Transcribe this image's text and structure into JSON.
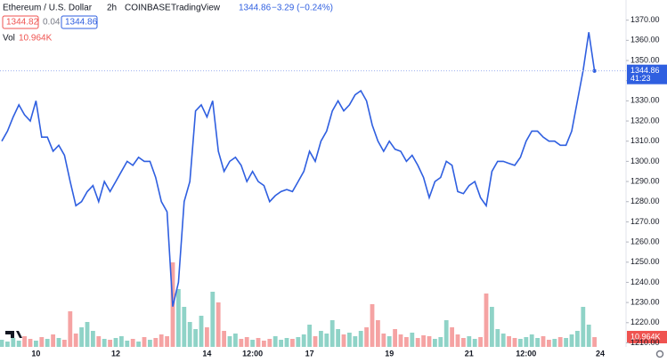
{
  "header": {
    "symbol": "Ethereum / U.S. Dollar",
    "interval": "2h",
    "exchange": "COINBASE",
    "source": "TradingView",
    "last": "1344.86",
    "change": "−3.29 (−0.24%)",
    "bid": "1344.82",
    "spread": "0.04",
    "ask": "1344.86",
    "vol_value": "10.964K",
    "badge_price": "1344.86",
    "badge_timer": "41:23",
    "badge_volume": "10.964K"
  },
  "chart_data": {
    "type": "line",
    "categories": [
      null,
      null,
      null,
      null,
      null,
      null,
      "10",
      null,
      null,
      null,
      null,
      null,
      null,
      null,
      null,
      null,
      null,
      null,
      null,
      null,
      "12",
      null,
      null,
      null,
      null,
      null,
      null,
      null,
      null,
      null,
      null,
      null,
      null,
      null,
      null,
      null,
      "14",
      null,
      null,
      null,
      null,
      null,
      null,
      null,
      "12:00",
      null,
      null,
      null,
      null,
      null,
      null,
      null,
      null,
      null,
      "17",
      null,
      null,
      null,
      null,
      null,
      null,
      null,
      null,
      null,
      null,
      null,
      null,
      null,
      "19",
      null,
      null,
      null,
      null,
      null,
      null,
      null,
      null,
      null,
      null,
      null,
      null,
      null,
      "21",
      null,
      null,
      null,
      null,
      null,
      null,
      null,
      null,
      null,
      "12:00",
      null,
      null,
      null,
      null,
      null,
      null,
      null,
      null,
      null,
      null,
      null,
      null,
      "24"
    ],
    "series": [
      {
        "name": "ETHUSD",
        "color": "#2f5fe0",
        "values": [
          1310,
          1315,
          1322,
          1328,
          1323,
          1320,
          1330,
          1312,
          1312,
          1305,
          1308,
          1303,
          1290,
          1278,
          1280,
          1285,
          1288,
          1280,
          1290,
          1285,
          1290,
          1295,
          1300,
          1298,
          1302,
          1300,
          1300,
          1292,
          1280,
          1275,
          1228,
          1240,
          1280,
          1290,
          1325,
          1328,
          1322,
          1330,
          1305,
          1295,
          1300,
          1302,
          1298,
          1290,
          1295,
          1290,
          1288,
          1280,
          1283,
          1285,
          1286,
          1285,
          1290,
          1295,
          1305,
          1300,
          1310,
          1315,
          1325,
          1330,
          1325,
          1328,
          1333,
          1335,
          1330,
          1318,
          1310,
          1305,
          1310,
          1306,
          1305,
          1300,
          1303,
          1298,
          1292,
          1282,
          1290,
          1292,
          1300,
          1298,
          1285,
          1284,
          1288,
          1290,
          1282,
          1278,
          1295,
          1300,
          1300,
          1299,
          1298,
          1302,
          1310,
          1315,
          1315,
          1312,
          1310,
          1310,
          1308,
          1308,
          1315,
          1330,
          1345,
          1364,
          1344.86,
          null
        ]
      }
    ],
    "volume": {
      "name": "Vol",
      "up_color": "#8fd3c7",
      "down_color": "#f5a3a3",
      "values": [
        8,
        6,
        10,
        7,
        12,
        9,
        7,
        11,
        9,
        14,
        10,
        8,
        40,
        15,
        22,
        28,
        18,
        12,
        9,
        8,
        10,
        12,
        7,
        9,
        6,
        11,
        8,
        10,
        14,
        12,
        95,
        65,
        45,
        28,
        20,
        35,
        22,
        62,
        50,
        18,
        12,
        15,
        9,
        11,
        8,
        10,
        7,
        9,
        12,
        8,
        10,
        9,
        11,
        14,
        25,
        12,
        18,
        15,
        30,
        20,
        14,
        16,
        12,
        18,
        22,
        48,
        30,
        15,
        12,
        20,
        14,
        11,
        16,
        10,
        13,
        12,
        9,
        11,
        30,
        22,
        14,
        10,
        12,
        9,
        11,
        60,
        45,
        20,
        15,
        12,
        10,
        9,
        11,
        14,
        10,
        12,
        8,
        9,
        11,
        10,
        14,
        18,
        45,
        25,
        10.964,
        null
      ]
    },
    "ylim": [
      1208,
      1380
    ],
    "yticks": [
      {
        "value": 1210,
        "label": "1210.00"
      },
      {
        "value": 1220,
        "label": "1220.00"
      },
      {
        "value": 1230,
        "label": "1230.00"
      },
      {
        "value": 1240,
        "label": "1240.00"
      },
      {
        "value": 1250,
        "label": "1250.00"
      },
      {
        "value": 1260,
        "label": "1260.00"
      },
      {
        "value": 1270,
        "label": "1270.00"
      },
      {
        "value": 1280,
        "label": "1280.00"
      },
      {
        "value": 1290,
        "label": "1290.00"
      },
      {
        "value": 1300,
        "label": "1300.00"
      },
      {
        "value": 1310,
        "label": "1310.00"
      },
      {
        "value": 1320,
        "label": "1320.00"
      },
      {
        "value": 1330,
        "label": "1330.00"
      },
      {
        "value": 1340,
        "label": "1340.00"
      },
      {
        "value": 1350,
        "label": "1350.00"
      },
      {
        "value": 1360,
        "label": "1360.00"
      },
      {
        "value": 1370,
        "label": "1370.00"
      }
    ],
    "last_value": 1344.86
  }
}
